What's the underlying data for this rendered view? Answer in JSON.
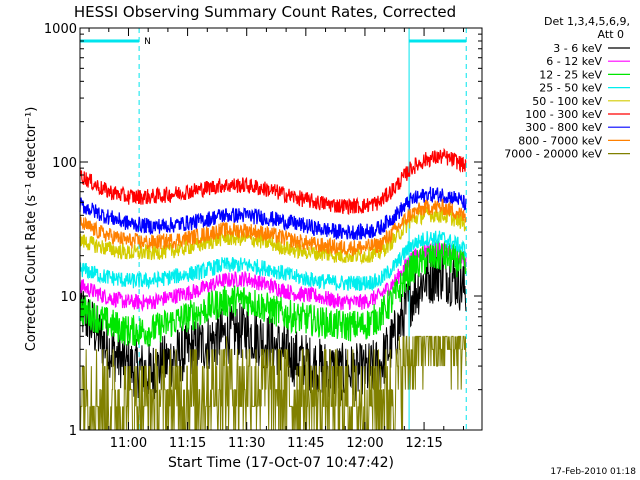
{
  "chart_data": {
    "type": "line",
    "title": "HESSI Observing Summary Count Rates, Corrected",
    "xlabel": "Start Time (17-Oct-07 10:47:42)",
    "ylabel": "Corrected Count Rate (s⁻¹ detector⁻¹)",
    "yscale": "log",
    "ylim": [
      1,
      1000
    ],
    "xlim_minutes_after_start": [
      0,
      102
    ],
    "x_ticks": [
      "11:00",
      "11:15",
      "11:30",
      "11:45",
      "12:00",
      "12:15"
    ],
    "x_tick_minutes_after_start": [
      12.3,
      27.3,
      42.3,
      57.3,
      72.3,
      87.3
    ],
    "y_ticks": [
      "1",
      "10",
      "100",
      "1000"
    ],
    "y_tick_values": [
      1,
      10,
      100,
      1000
    ],
    "legend_header": [
      "Det 1,3,4,5,6,9,",
      "Att 0"
    ],
    "legend_position": "top-right (outside plot)",
    "footer": "17-Feb-2010 01:18",
    "night_markers": {
      "color": "#00e5ee",
      "solid_lines_minutes": [
        0,
        83.5
      ],
      "dashed_lines_minutes": [
        15,
        98
      ],
      "bars_minutes": [
        [
          0,
          15
        ],
        [
          83.5,
          98
        ]
      ],
      "label": "N"
    },
    "x_points": [
      0,
      6,
      12,
      18,
      24,
      30,
      36,
      42,
      48,
      54,
      60,
      66,
      72,
      76,
      80,
      84,
      88,
      92,
      96,
      98
    ],
    "series": [
      {
        "name": "3 - 6 keV",
        "color": "#000000",
        "values": [
          8,
          4.5,
          3,
          2.7,
          3.5,
          4.2,
          5,
          5.5,
          4.5,
          3.5,
          3,
          2.7,
          2.7,
          3,
          5,
          10,
          14,
          15,
          13,
          11
        ]
      },
      {
        "name": "6 - 12 keV",
        "color": "#ff00ff",
        "values": [
          12,
          10,
          9,
          9,
          10,
          11,
          13,
          13.5,
          12,
          10.5,
          10,
          9,
          9,
          10,
          13,
          19,
          22,
          22,
          20,
          18
        ]
      },
      {
        "name": "12 - 25 keV",
        "color": "#00e600",
        "values": [
          8,
          6.5,
          5.5,
          5.5,
          6.5,
          7.5,
          9,
          9.5,
          8,
          7,
          6.5,
          6,
          6,
          7,
          10,
          16,
          19,
          20,
          18,
          16
        ]
      },
      {
        "name": "25 - 50 keV",
        "color": "#00eeee",
        "values": [
          16,
          14,
          13,
          13,
          14,
          15,
          17,
          17,
          16,
          14,
          13,
          12.5,
          12.5,
          13,
          17,
          24,
          27,
          27,
          24,
          22
        ]
      },
      {
        "name": "50 - 100 keV",
        "color": "#d4cc00",
        "values": [
          26,
          23,
          21,
          21,
          22,
          24,
          27,
          27,
          25,
          22,
          21,
          20,
          20,
          21,
          27,
          37,
          41,
          40,
          37,
          34
        ]
      },
      {
        "name": "100 - 300 keV",
        "color": "#ff0000",
        "values": [
          80,
          62,
          55,
          55,
          58,
          62,
          67,
          67,
          62,
          55,
          50,
          47,
          47,
          50,
          65,
          90,
          105,
          110,
          100,
          92
        ]
      },
      {
        "name": "300 - 800 keV",
        "color": "#0000ff",
        "values": [
          48,
          40,
          35,
          33,
          34,
          36,
          40,
          40,
          38,
          35,
          32,
          30,
          30,
          32,
          40,
          52,
          57,
          57,
          53,
          48
        ]
      },
      {
        "name": "800 - 7000 keV",
        "color": "#ff8000",
        "values": [
          35,
          29,
          26,
          25,
          26,
          28,
          31,
          31,
          29,
          26,
          24,
          23,
          23,
          24,
          31,
          41,
          46,
          46,
          42,
          38
        ]
      },
      {
        "name": "7000 - 20000 keV",
        "color": "#808000",
        "values": [
          2,
          1.6,
          1.5,
          1.5,
          1.6,
          1.8,
          2,
          2,
          1.9,
          1.7,
          1.6,
          1.5,
          1.5,
          1.6,
          2,
          3.5,
          4.5,
          4.5,
          4,
          4
        ]
      }
    ]
  }
}
